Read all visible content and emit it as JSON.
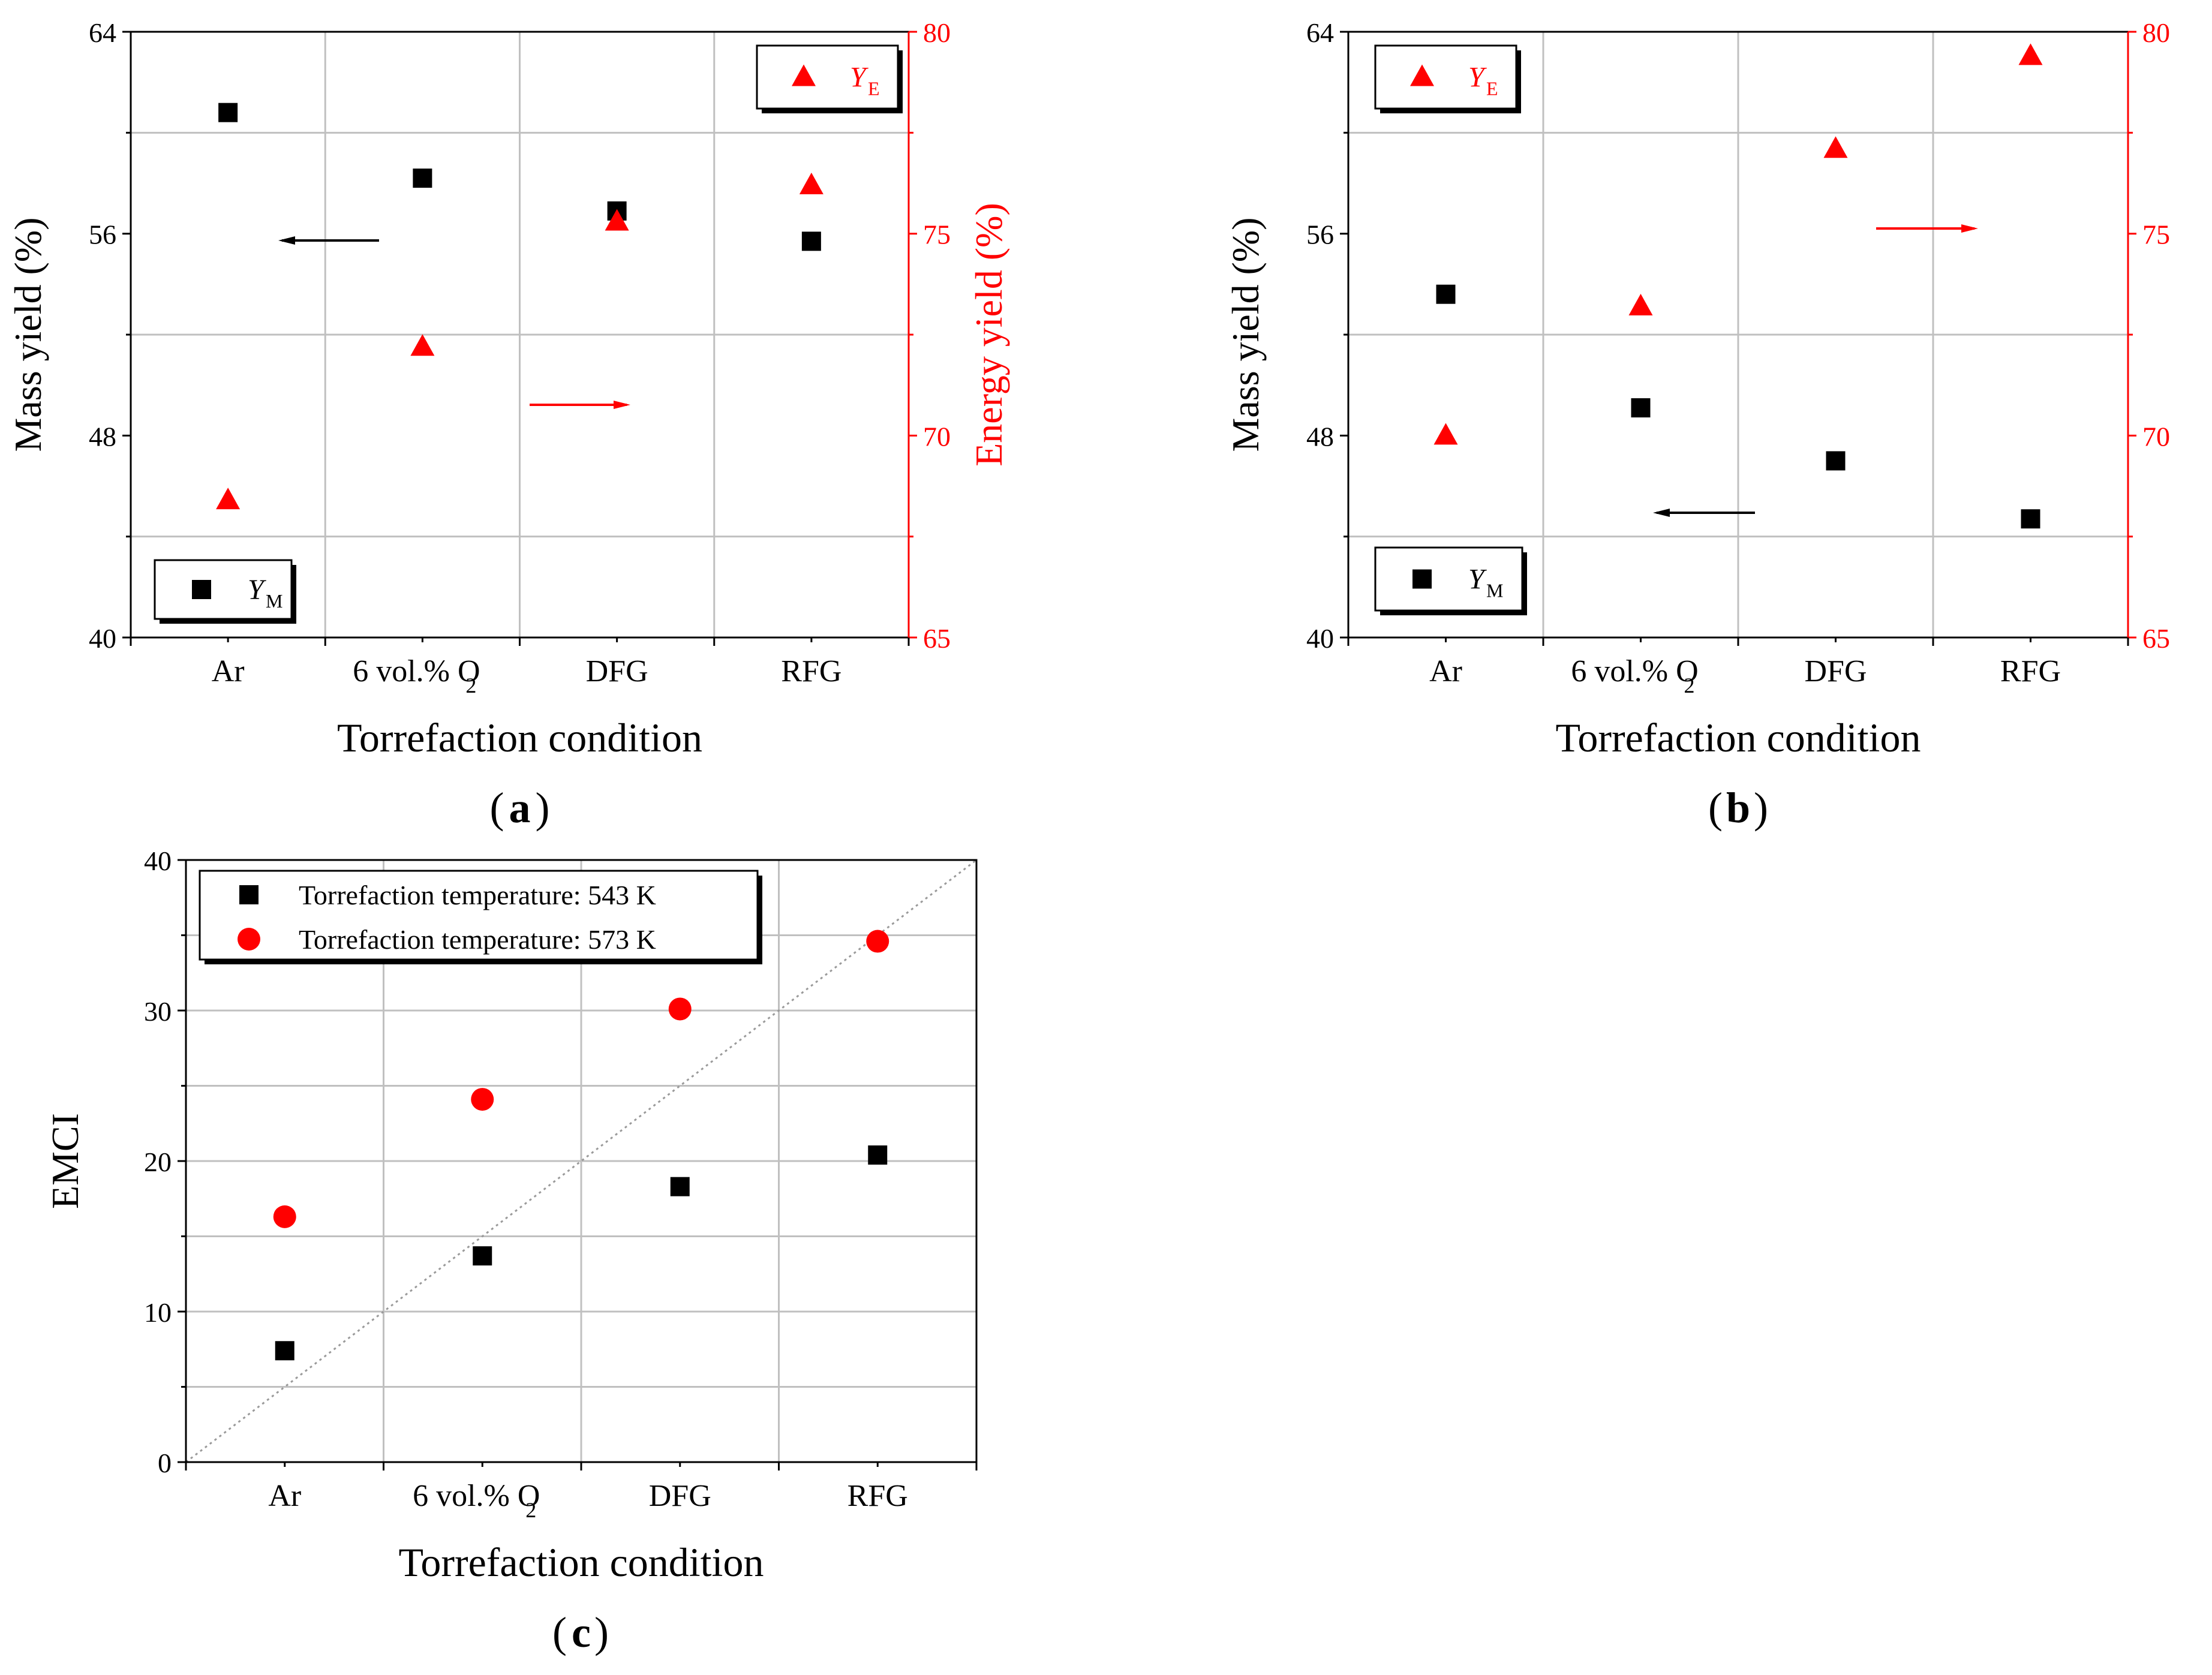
{
  "colors": {
    "black": "#000000",
    "red": "#ff0000",
    "grid": "#c0c0c0",
    "diag": "#9a9a9a"
  },
  "categories": [
    "Ar",
    "6 vol.% O",
    "DFG",
    "RFG"
  ],
  "o2_subscript": "2",
  "chart_data": [
    {
      "id": "a",
      "type": "scatter",
      "panel_label": "a",
      "xlabel": "Torrefaction condition",
      "ylabel_left": "Mass yield (%)",
      "ylabel_right": "Energy yield (%)",
      "ylim_left": [
        40,
        64
      ],
      "yticks_left": [
        40,
        48,
        56,
        64
      ],
      "ylim_right": [
        65,
        80
      ],
      "yticks_right": [
        65,
        70,
        75,
        80
      ],
      "grid": true,
      "series": [
        {
          "name": "Y_M",
          "axis": "left",
          "marker": "square",
          "color": "#000000",
          "values": [
            60.8,
            58.2,
            56.9,
            55.7
          ]
        },
        {
          "name": "Y_E",
          "axis": "right",
          "marker": "triangle",
          "color": "#ff0000",
          "values": [
            68.4,
            72.2,
            75.3,
            76.2
          ]
        }
      ],
      "legends": [
        {
          "series": "Y_E",
          "symbol": "Y",
          "sub": "E",
          "placement": "top-right"
        },
        {
          "series": "Y_M",
          "symbol": "Y",
          "sub": "M",
          "placement": "bottom-left"
        }
      ],
      "arrows": [
        {
          "series": "Y_M",
          "direction": "left"
        },
        {
          "series": "Y_E",
          "direction": "right"
        }
      ]
    },
    {
      "id": "b",
      "type": "scatter",
      "panel_label": "b",
      "xlabel": "Torrefaction condition",
      "ylabel_left": "Mass yield (%)",
      "ylabel_right": "",
      "ylim_left": [
        40,
        64
      ],
      "yticks_left": [
        40,
        48,
        56,
        64
      ],
      "ylim_right": [
        65,
        80
      ],
      "yticks_right": [
        65,
        70,
        75,
        80
      ],
      "grid": true,
      "series": [
        {
          "name": "Y_M",
          "axis": "left",
          "marker": "square",
          "color": "#000000",
          "values": [
            53.6,
            49.1,
            47.0,
            44.7
          ]
        },
        {
          "name": "Y_E",
          "axis": "right",
          "marker": "triangle",
          "color": "#ff0000",
          "values": [
            70.0,
            73.2,
            77.1,
            79.4
          ]
        }
      ],
      "legends": [
        {
          "series": "Y_E",
          "symbol": "Y",
          "sub": "E",
          "placement": "top-left"
        },
        {
          "series": "Y_M",
          "symbol": "Y",
          "sub": "M",
          "placement": "bottom-left"
        }
      ],
      "arrows": [
        {
          "series": "Y_M",
          "direction": "left"
        },
        {
          "series": "Y_E",
          "direction": "right"
        }
      ]
    },
    {
      "id": "c",
      "type": "scatter",
      "panel_label": "c",
      "xlabel": "Torrefaction condition",
      "ylabel_left": "EMCI",
      "ylim_left": [
        0,
        40
      ],
      "yticks_left": [
        0,
        10,
        20,
        30,
        40
      ],
      "grid": true,
      "diagonal_reference_line": true,
      "series": [
        {
          "name": "Torrefaction temperature: 543 K",
          "marker": "square",
          "color": "#000000",
          "values": [
            7.4,
            13.7,
            18.3,
            20.4
          ]
        },
        {
          "name": "Torrefaction temperature: 573 K",
          "marker": "circle",
          "color": "#ff0000",
          "values": [
            16.3,
            24.1,
            30.1,
            34.6
          ]
        }
      ],
      "legend_placement": "top-left"
    }
  ]
}
